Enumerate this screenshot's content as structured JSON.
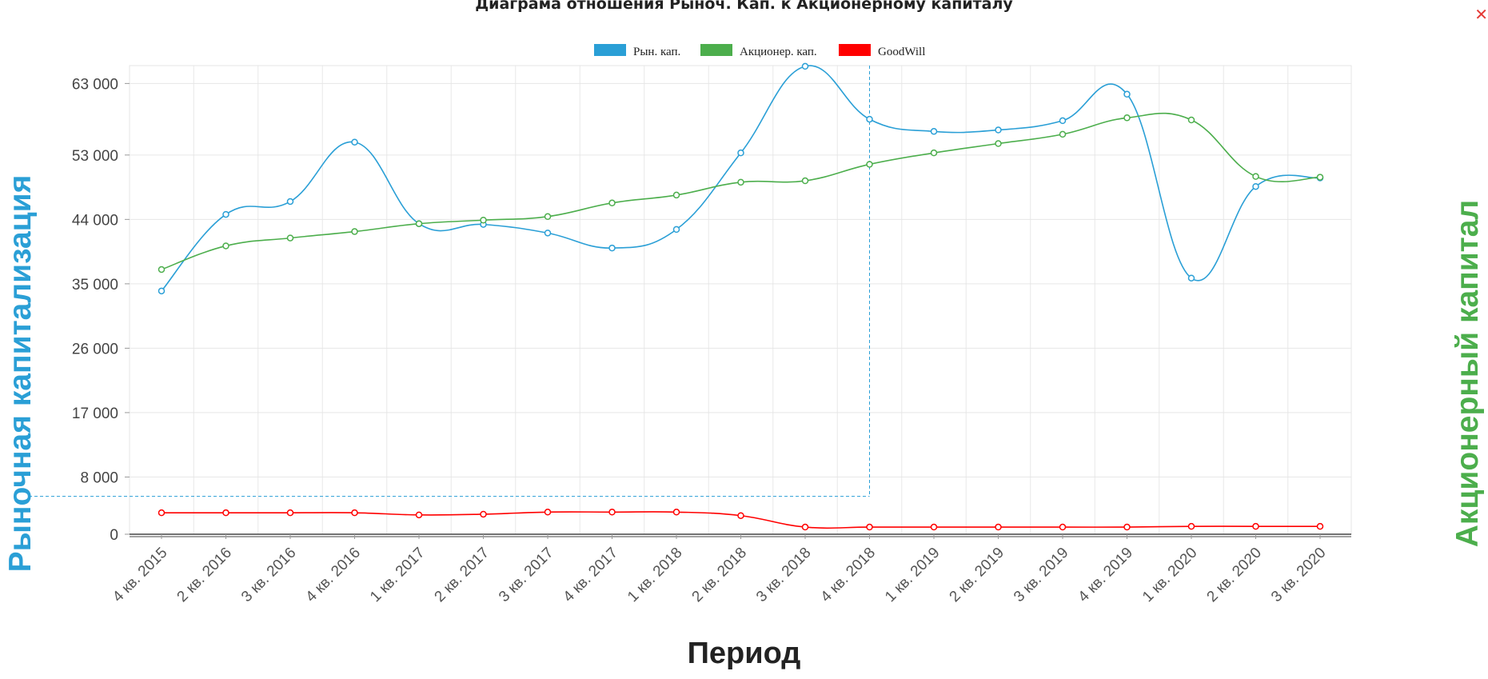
{
  "chart_data": {
    "type": "line",
    "title": "Диаграма отношения Рыноч. Кап. к Акционерному капиталу",
    "xlabel": "Период",
    "ylabel_left": "Рыночная капитализация",
    "ylabel_right": "Акционерный капитал",
    "categories": [
      "4 кв. 2015",
      "2 кв. 2016",
      "3 кв. 2016",
      "4 кв. 2016",
      "1 кв. 2017",
      "2 кв. 2017",
      "3 кв. 2017",
      "4 кв. 2017",
      "1 кв. 2018",
      "2 кв. 2018",
      "3 кв. 2018",
      "4 кв. 2018",
      "1 кв. 2019",
      "2 кв. 2019",
      "3 кв. 2019",
      "4 кв. 2019",
      "1 кв. 2020",
      "2 кв. 2020",
      "3 кв. 2020"
    ],
    "y_ticks": [
      0,
      8000,
      17000,
      26000,
      35000,
      44000,
      53000,
      63000
    ],
    "y_tick_labels": [
      "0",
      "8 000",
      "17 000",
      "26 000",
      "35 000",
      "44 000",
      "53 000",
      "63 000"
    ],
    "ylim": [
      0,
      65500
    ],
    "grid": true,
    "legend_position": "top-center",
    "series": [
      {
        "name": "Рын. кап.",
        "color": "#2a9fd6",
        "values": [
          34000,
          44700,
          46500,
          54800,
          43400,
          43300,
          42100,
          40000,
          42600,
          53300,
          65400,
          58000,
          56300,
          56500,
          57800,
          61500,
          35800,
          48600,
          49800
        ]
      },
      {
        "name": "Акционер. кап.",
        "color": "#4cae4c",
        "values": [
          37000,
          40300,
          41400,
          42300,
          43400,
          43900,
          44400,
          46300,
          47400,
          49200,
          49400,
          51700,
          53300,
          54600,
          55900,
          58200,
          57900,
          50000,
          49900
        ]
      },
      {
        "name": "GoodWill",
        "color": "#ff0000",
        "values": [
          3000,
          3000,
          3000,
          3000,
          2700,
          2800,
          3100,
          3100,
          3100,
          2600,
          1000,
          1000,
          1000,
          1000,
          1000,
          1000,
          1100,
          1100,
          1100
        ]
      }
    ],
    "crosshair": {
      "category": "4 кв. 2018",
      "value": 5300
    }
  },
  "ui": {
    "close_icon": "close-icon",
    "left_axis_title_color": "#2a9fd6",
    "right_axis_title_color": "#4cae4c"
  }
}
